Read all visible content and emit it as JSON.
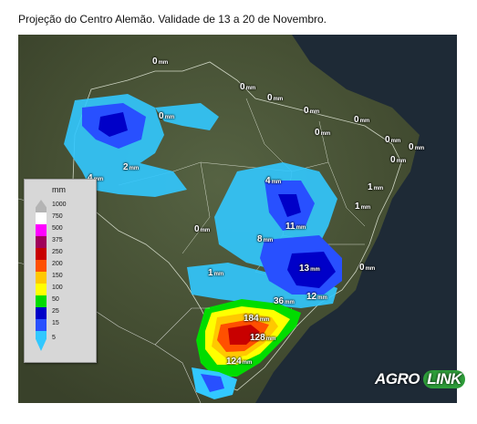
{
  "title": "Projeção do Centro Alemão. Validade de 13 a 20 de Novembro.",
  "legend": {
    "unit": "mm",
    "levels": [
      {
        "value": "1000",
        "color": "#b4b4b4"
      },
      {
        "value": "750",
        "color": "#ffffff"
      },
      {
        "value": "500",
        "color": "#ff00ff"
      },
      {
        "value": "375",
        "color": "#a0005a"
      },
      {
        "value": "250",
        "color": "#c80000"
      },
      {
        "value": "200",
        "color": "#ff5000"
      },
      {
        "value": "150",
        "color": "#ffc800"
      },
      {
        "value": "100",
        "color": "#ffff00"
      },
      {
        "value": "50",
        "color": "#00dc00"
      },
      {
        "value": "25",
        "color": "#0000c8"
      },
      {
        "value": "15",
        "color": "#2850ff"
      },
      {
        "value": "5",
        "color": "#32c8ff"
      }
    ]
  },
  "labels": [
    {
      "value": "0",
      "unit": "mm"
    },
    {
      "value": "0",
      "unit": "mm"
    },
    {
      "value": "0",
      "unit": "mm"
    },
    {
      "value": "0",
      "unit": "mm"
    },
    {
      "value": "0",
      "unit": "mm"
    },
    {
      "value": "0",
      "unit": "mm"
    },
    {
      "value": "0",
      "unit": "mm"
    },
    {
      "value": "0",
      "unit": "mm"
    },
    {
      "value": "0",
      "unit": "mm"
    },
    {
      "value": "0",
      "unit": "mm"
    },
    {
      "value": "2",
      "unit": "mm"
    },
    {
      "value": "4",
      "unit": "mm"
    },
    {
      "value": "4",
      "unit": "mm"
    },
    {
      "value": "1",
      "unit": "mm"
    },
    {
      "value": "1",
      "unit": "mm"
    },
    {
      "value": "0",
      "unit": "mm"
    },
    {
      "value": "11",
      "unit": "mm"
    },
    {
      "value": "8",
      "unit": "mm"
    },
    {
      "value": "13",
      "unit": "mm"
    },
    {
      "value": "0",
      "unit": "mm"
    },
    {
      "value": "1",
      "unit": "mm"
    },
    {
      "value": "36",
      "unit": "mm"
    },
    {
      "value": "12",
      "unit": "mm"
    },
    {
      "value": "184",
      "unit": "mm"
    },
    {
      "value": "128",
      "unit": "mm"
    },
    {
      "value": "124",
      "unit": "mm"
    }
  ],
  "logo": {
    "part1": "AGRO",
    "part2": "LINK"
  },
  "colors": {
    "land": "#3e4a2c",
    "ocean": "#1e2a36",
    "light_rain": "#32c8ff",
    "mid_rain": "#2850ff",
    "heavy_rain": "#0000c8"
  }
}
